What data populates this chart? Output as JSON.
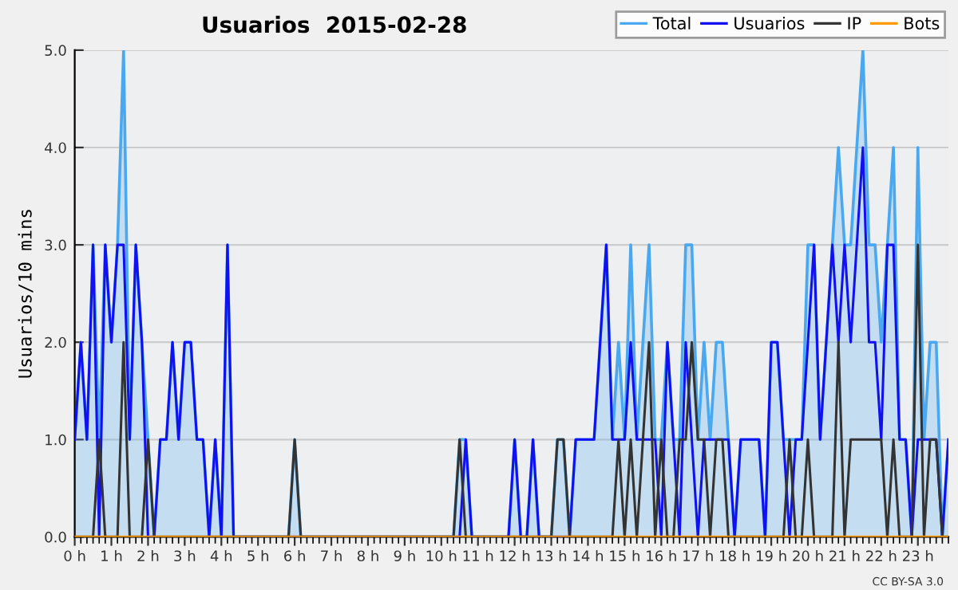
{
  "chart_data": {
    "type": "line",
    "title": "Usuarios  2015-02-28",
    "ylabel": "Usuarios/10 mins",
    "annotations": [
      "CC BY-SA 3.0"
    ],
    "x": [
      0,
      0.167,
      0.333,
      0.5,
      0.667,
      0.833,
      1,
      1.167,
      1.333,
      1.5,
      1.667,
      1.833,
      2,
      2.167,
      2.333,
      2.5,
      2.667,
      2.833,
      3,
      3.167,
      3.333,
      3.5,
      3.667,
      3.833,
      4,
      4.167,
      4.333,
      4.5,
      4.667,
      4.833,
      5,
      5.167,
      5.333,
      5.5,
      5.667,
      5.833,
      6,
      6.167,
      6.333,
      6.5,
      6.667,
      6.833,
      7,
      7.167,
      7.333,
      7.5,
      7.667,
      7.833,
      8,
      8.167,
      8.333,
      8.5,
      8.667,
      8.833,
      9,
      9.167,
      9.333,
      9.5,
      9.667,
      9.833,
      10,
      10.167,
      10.333,
      10.5,
      10.667,
      10.833,
      11,
      11.167,
      11.333,
      11.5,
      11.667,
      11.833,
      12,
      12.167,
      12.333,
      12.5,
      12.667,
      12.833,
      13,
      13.167,
      13.333,
      13.5,
      13.667,
      13.833,
      14,
      14.167,
      14.333,
      14.5,
      14.667,
      14.833,
      15,
      15.167,
      15.333,
      15.5,
      15.667,
      15.833,
      16,
      16.167,
      16.333,
      16.5,
      16.667,
      16.833,
      17,
      17.167,
      17.333,
      17.5,
      17.667,
      17.833,
      18,
      18.167,
      18.333,
      18.5,
      18.667,
      18.833,
      19,
      19.167,
      19.333,
      19.5,
      19.667,
      19.833,
      20,
      20.167,
      20.333,
      20.5,
      20.667,
      20.833,
      21,
      21.167,
      21.333,
      21.5,
      21.667,
      21.833,
      22,
      22.167,
      22.333,
      22.5,
      22.667,
      22.833,
      23,
      23.167,
      23.333,
      23.5,
      23.667,
      23.833
    ],
    "series": [
      {
        "name": "Total",
        "type": "area",
        "color": "#4aa8f0",
        "values": [
          1,
          2,
          1,
          3,
          1,
          3,
          2,
          3,
          5,
          1,
          3,
          2,
          1,
          0,
          1,
          1,
          2,
          1,
          2,
          2,
          1,
          1,
          0,
          1,
          0,
          3,
          0,
          0,
          0,
          0,
          0,
          0,
          0,
          0,
          0,
          0,
          1,
          0,
          0,
          0,
          0,
          0,
          0,
          0,
          0,
          0,
          0,
          0,
          0,
          0,
          0,
          0,
          0,
          0,
          0,
          0,
          0,
          0,
          0,
          0,
          0,
          0,
          0,
          1,
          1,
          0,
          0,
          0,
          0,
          0,
          0,
          0,
          1,
          0,
          0,
          1,
          0,
          0,
          0,
          1,
          1,
          0,
          1,
          1,
          1,
          1,
          2,
          3,
          1,
          2,
          1,
          3,
          1,
          2,
          3,
          1,
          1,
          2,
          1,
          1,
          3,
          3,
          1,
          2,
          1,
          2,
          2,
          1,
          0,
          1,
          1,
          1,
          1,
          0,
          2,
          2,
          1,
          1,
          1,
          1,
          3,
          3,
          1,
          2,
          3,
          4,
          3,
          3,
          4,
          5,
          3,
          3,
          2,
          3,
          4,
          1,
          1,
          0,
          4,
          1,
          2,
          2,
          0,
          1
        ]
      },
      {
        "name": "Usuarios",
        "color": "#1010f0",
        "values": [
          1,
          2,
          1,
          3,
          0,
          3,
          2,
          3,
          3,
          1,
          3,
          2,
          0,
          0,
          1,
          1,
          2,
          1,
          2,
          2,
          1,
          1,
          0,
          1,
          0,
          3,
          0,
          0,
          0,
          0,
          0,
          0,
          0,
          0,
          0,
          0,
          0,
          0,
          0,
          0,
          0,
          0,
          0,
          0,
          0,
          0,
          0,
          0,
          0,
          0,
          0,
          0,
          0,
          0,
          0,
          0,
          0,
          0,
          0,
          0,
          0,
          0,
          0,
          0,
          1,
          0,
          0,
          0,
          0,
          0,
          0,
          0,
          1,
          0,
          0,
          1,
          0,
          0,
          0,
          0,
          0,
          0,
          1,
          1,
          1,
          1,
          2,
          3,
          1,
          1,
          1,
          2,
          1,
          1,
          1,
          1,
          0,
          2,
          1,
          0,
          2,
          1,
          0,
          1,
          1,
          1,
          1,
          1,
          0,
          1,
          1,
          1,
          1,
          0,
          2,
          2,
          1,
          0,
          1,
          1,
          2,
          3,
          1,
          2,
          3,
          2,
          3,
          2,
          3,
          4,
          2,
          2,
          1,
          3,
          3,
          1,
          1,
          0,
          1,
          1,
          1,
          1,
          0,
          1
        ]
      },
      {
        "name": "IP",
        "color": "#333333",
        "values": [
          0,
          0,
          0,
          0,
          1,
          0,
          0,
          0,
          2,
          0,
          0,
          0,
          1,
          0,
          0,
          0,
          0,
          0,
          0,
          0,
          0,
          0,
          0,
          0,
          0,
          0,
          0,
          0,
          0,
          0,
          0,
          0,
          0,
          0,
          0,
          0,
          1,
          0,
          0,
          0,
          0,
          0,
          0,
          0,
          0,
          0,
          0,
          0,
          0,
          0,
          0,
          0,
          0,
          0,
          0,
          0,
          0,
          0,
          0,
          0,
          0,
          0,
          0,
          1,
          0,
          0,
          0,
          0,
          0,
          0,
          0,
          0,
          0,
          0,
          0,
          0,
          0,
          0,
          0,
          1,
          1,
          0,
          0,
          0,
          0,
          0,
          0,
          0,
          0,
          1,
          0,
          1,
          0,
          1,
          2,
          0,
          1,
          0,
          0,
          1,
          1,
          2,
          1,
          1,
          0,
          1,
          1,
          0,
          0,
          0,
          0,
          0,
          0,
          0,
          0,
          0,
          0,
          1,
          0,
          0,
          1,
          0,
          0,
          0,
          0,
          2,
          0,
          1,
          1,
          1,
          1,
          1,
          1,
          0,
          1,
          0,
          0,
          0,
          3,
          0,
          1,
          1,
          0,
          0
        ]
      },
      {
        "name": "Bots",
        "color": "#ff9900",
        "x": [
          0,
          23.833
        ],
        "values": [
          0,
          0
        ]
      }
    ],
    "xlim": [
      0,
      23.833
    ],
    "xticks": [
      {
        "value": 0,
        "label": "0 h"
      },
      {
        "value": 1,
        "label": "1 h"
      },
      {
        "value": 2,
        "label": "2 h"
      },
      {
        "value": 3,
        "label": "3 h"
      },
      {
        "value": 4,
        "label": "4 h"
      },
      {
        "value": 5,
        "label": "5 h"
      },
      {
        "value": 6,
        "label": "6 h"
      },
      {
        "value": 7,
        "label": "7 h"
      },
      {
        "value": 8,
        "label": "8 h"
      },
      {
        "value": 9,
        "label": "9 h"
      },
      {
        "value": 10,
        "label": "10 h"
      },
      {
        "value": 11,
        "label": "11 h"
      },
      {
        "value": 12,
        "label": "12 h"
      },
      {
        "value": 13,
        "label": "13 h"
      },
      {
        "value": 14,
        "label": "14 h"
      },
      {
        "value": 15,
        "label": "15 h"
      },
      {
        "value": 16,
        "label": "16 h"
      },
      {
        "value": 17,
        "label": "17 h"
      },
      {
        "value": 18,
        "label": "18 h"
      },
      {
        "value": 19,
        "label": "19 h"
      },
      {
        "value": 20,
        "label": "20 h"
      },
      {
        "value": 21,
        "label": "21 h"
      },
      {
        "value": 22,
        "label": "22 h"
      },
      {
        "value": 23,
        "label": "23 h"
      }
    ],
    "ylim": [
      0,
      5
    ],
    "yticks": [
      {
        "value": 0,
        "label": "0.0"
      },
      {
        "value": 1,
        "label": "1.0"
      },
      {
        "value": 2,
        "label": "2.0"
      },
      {
        "value": 3,
        "label": "3.0"
      },
      {
        "value": 4,
        "label": "4.0"
      },
      {
        "value": 5,
        "label": "5.0"
      }
    ],
    "grid": "y",
    "legend": "top right",
    "marker": "none",
    "line_style": "solid"
  }
}
